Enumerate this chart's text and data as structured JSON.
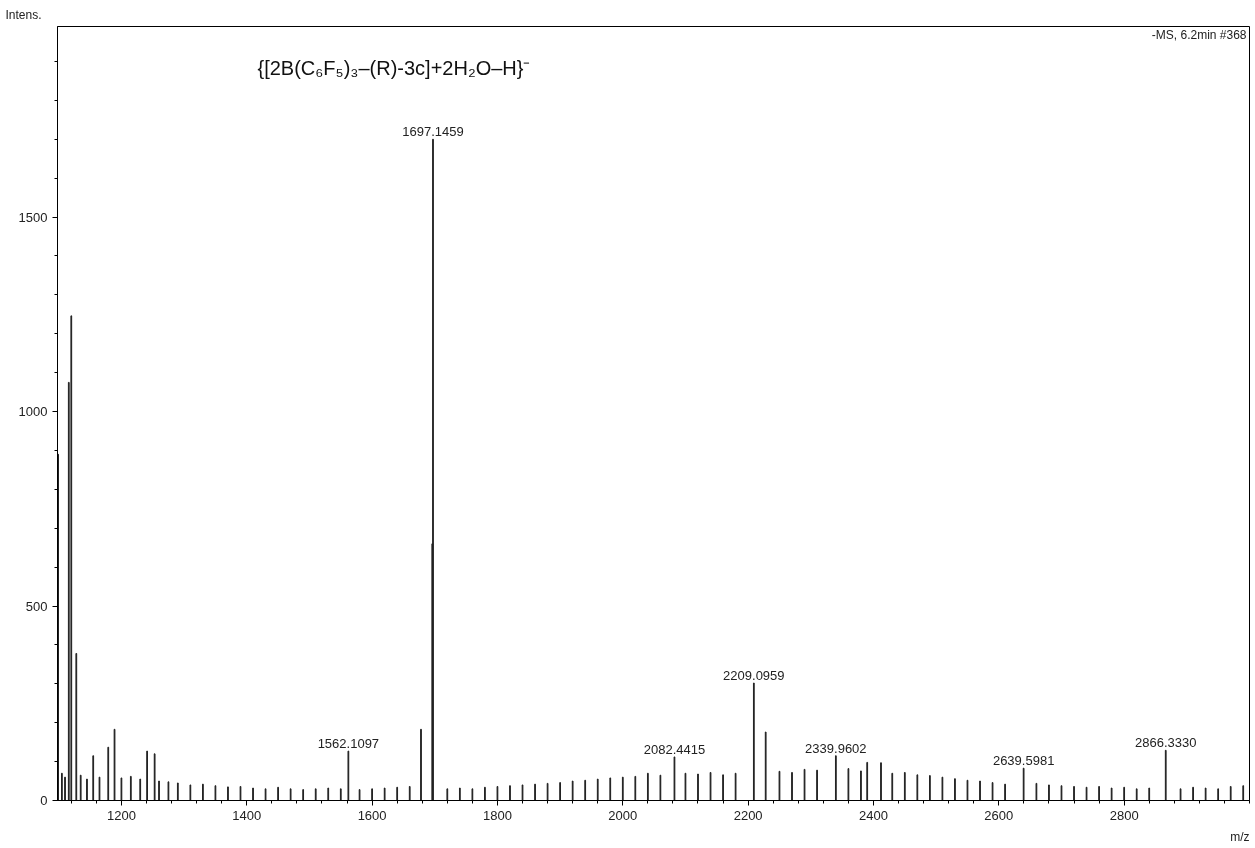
{
  "chart_data": {
    "type": "bar",
    "title": "{[2B(C₆F₅)₃–(R)-3c]+2H₂O–H}⁻",
    "xlabel": "m/z",
    "ylabel": "Intens.",
    "annotations": [
      "-MS, 6.2min #368",
      {
        "text": "1562.1097",
        "x": 1562.1097,
        "y": 127
      },
      {
        "text": "1697.1459",
        "x": 1697.1459,
        "y": 1700
      },
      {
        "text": "2082.4415",
        "x": 2082.4415,
        "y": 112
      },
      {
        "text": "2209.0959",
        "x": 2209.0959,
        "y": 302
      },
      {
        "text": "2339.9602",
        "x": 2339.9602,
        "y": 115
      },
      {
        "text": "2639.5981",
        "x": 2639.5981,
        "y": 83
      },
      {
        "text": "2866.3330",
        "x": 2866.333,
        "y": 129
      }
    ],
    "xlim": [
      1098,
      3000
    ],
    "ylim": [
      0,
      1990
    ],
    "xticks": [
      1200,
      1400,
      1600,
      1800,
      2000,
      2200,
      2400,
      2600,
      2800
    ],
    "yticks": [
      0,
      500,
      1000,
      1500
    ],
    "grid": false,
    "series": [
      {
        "color": "#222222",
        "x": [
          1099,
          1105,
          1110,
          1116,
          1120,
          1128,
          1135,
          1145,
          1155,
          1165,
          1179,
          1189,
          1200,
          1215,
          1230,
          1241,
          1253,
          1260,
          1275,
          1290,
          1310,
          1330,
          1350,
          1370,
          1390,
          1410,
          1430,
          1450,
          1470,
          1490,
          1510,
          1530,
          1550,
          1562.1097,
          1580,
          1600,
          1620,
          1640,
          1660,
          1678,
          1696,
          1697.1459,
          1720,
          1740,
          1760,
          1780,
          1800,
          1820,
          1840,
          1860,
          1880,
          1900,
          1920,
          1940,
          1960,
          1980,
          2000,
          2020,
          2040,
          2060,
          2082.4415,
          2100,
          2120,
          2140,
          2160,
          2180,
          2209.0959,
          2228,
          2250,
          2270,
          2290,
          2310,
          2339.9602,
          2360,
          2380,
          2390,
          2412,
          2430,
          2450,
          2470,
          2490,
          2510,
          2530,
          2550,
          2570,
          2590,
          2610,
          2639.5981,
          2660,
          2680,
          2700,
          2720,
          2740,
          2760,
          2780,
          2800,
          2820,
          2840,
          2866.333,
          2890,
          2910,
          2930,
          2950,
          2970,
          2990
        ],
        "values": [
          890,
          70,
          60,
          1075,
          1246,
          378,
          65,
          55,
          115,
          60,
          137,
          183,
          58,
          62,
          55,
          127,
          120,
          50,
          48,
          45,
          40,
          42,
          38,
          35,
          36,
          32,
          30,
          34,
          30,
          28,
          30,
          32,
          30,
          127,
          28,
          30,
          32,
          34,
          36,
          183,
          660,
          1700,
          30,
          32,
          30,
          34,
          36,
          38,
          40,
          42,
          44,
          46,
          50,
          52,
          55,
          58,
          60,
          62,
          70,
          65,
          112,
          70,
          68,
          72,
          66,
          70,
          302,
          176,
          75,
          72,
          80,
          78,
          115,
          82,
          76,
          98,
          97,
          70,
          72,
          66,
          64,
          60,
          56,
          52,
          50,
          46,
          42,
          83,
          44,
          40,
          38,
          36,
          34,
          36,
          32,
          34,
          30,
          32,
          129,
          30,
          34,
          32,
          30,
          36,
          38
        ]
      }
    ]
  }
}
